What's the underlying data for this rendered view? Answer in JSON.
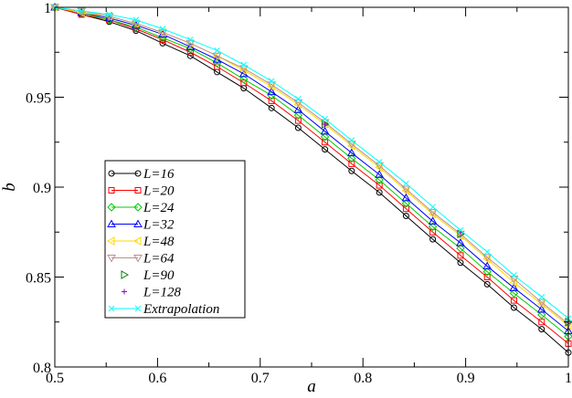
{
  "chart_data": {
    "type": "line",
    "title": "",
    "xlabel": "a",
    "ylabel": "b",
    "xlim": [
      0.5,
      1.0
    ],
    "ylim": [
      0.8,
      1.0
    ],
    "x_ticks": [
      "0.5",
      "0.6",
      "0.7",
      "0.8",
      "0.9",
      "1"
    ],
    "y_ticks": [
      "0.8",
      "0.85",
      "0.9",
      "0.95",
      "1"
    ],
    "grid": false,
    "legend_position": "bottom-left",
    "x": [
      0.5,
      0.526,
      0.553,
      0.579,
      0.605,
      0.632,
      0.658,
      0.684,
      0.711,
      0.737,
      0.763,
      0.789,
      0.816,
      0.842,
      0.868,
      0.895,
      0.921,
      0.947,
      0.974,
      1.0
    ],
    "series": [
      {
        "name": "L=16",
        "color": "#000000",
        "marker": "circle",
        "line": true,
        "values": [
          1.0,
          0.996,
          0.992,
          0.987,
          0.98,
          0.973,
          0.964,
          0.955,
          0.944,
          0.933,
          0.921,
          0.909,
          0.897,
          0.884,
          0.871,
          0.858,
          0.846,
          0.833,
          0.821,
          0.808
        ]
      },
      {
        "name": "L=20",
        "color": "#ff0000",
        "marker": "square",
        "line": true,
        "values": [
          1.0,
          0.996,
          0.993,
          0.988,
          0.982,
          0.975,
          0.967,
          0.958,
          0.948,
          0.937,
          0.925,
          0.913,
          0.901,
          0.888,
          0.875,
          0.862,
          0.85,
          0.837,
          0.825,
          0.813
        ]
      },
      {
        "name": "L=24",
        "color": "#00cc00",
        "marker": "diamond",
        "line": true,
        "values": [
          1.0,
          0.997,
          0.993,
          0.989,
          0.983,
          0.977,
          0.969,
          0.96,
          0.951,
          0.94,
          0.928,
          0.916,
          0.904,
          0.891,
          0.878,
          0.866,
          0.853,
          0.841,
          0.829,
          0.817
        ]
      },
      {
        "name": "L=32",
        "color": "#0000ff",
        "marker": "triangle-up",
        "line": true,
        "values": [
          1.0,
          0.997,
          0.994,
          0.99,
          0.985,
          0.978,
          0.971,
          0.963,
          0.953,
          0.943,
          0.931,
          0.919,
          0.907,
          0.894,
          0.881,
          0.869,
          0.856,
          0.844,
          0.832,
          0.82
        ]
      },
      {
        "name": "L=48",
        "color": "#ffd700",
        "marker": "triangle-left",
        "line": true,
        "values": [
          1.0,
          0.997,
          0.995,
          0.991,
          0.986,
          0.98,
          0.973,
          0.965,
          0.956,
          0.946,
          0.935,
          0.923,
          0.911,
          0.898,
          0.885,
          0.873,
          0.86,
          0.847,
          0.835,
          0.823
        ]
      },
      {
        "name": "L=64",
        "color": "#bc8f8f",
        "marker": "triangle-down",
        "line": true,
        "values": [
          1.0,
          0.998,
          0.995,
          0.991,
          0.986,
          0.98,
          0.973,
          0.966,
          0.957,
          0.947,
          0.936,
          0.924,
          0.912,
          0.899,
          0.886,
          0.874,
          0.861,
          0.849,
          0.836,
          0.824
        ]
      },
      {
        "name": "L=90",
        "color": "#008000",
        "marker": "triangle-right",
        "line": false,
        "x": [
          0.763,
          0.895,
          1.0
        ],
        "values": [
          0.935,
          0.874,
          0.825
        ]
      },
      {
        "name": "L=128",
        "color": "#9400d3",
        "marker": "plus",
        "line": false,
        "x": [
          0.763,
          0.895,
          1.0
        ],
        "values": [
          0.935,
          0.875,
          0.825
        ]
      },
      {
        "name": "Extrapolation",
        "color": "#00ffff",
        "marker": "x",
        "line": true,
        "values": [
          1.0,
          0.998,
          0.996,
          0.993,
          0.988,
          0.982,
          0.976,
          0.968,
          0.959,
          0.949,
          0.938,
          0.926,
          0.914,
          0.902,
          0.889,
          0.876,
          0.864,
          0.851,
          0.839,
          0.827
        ]
      }
    ]
  }
}
